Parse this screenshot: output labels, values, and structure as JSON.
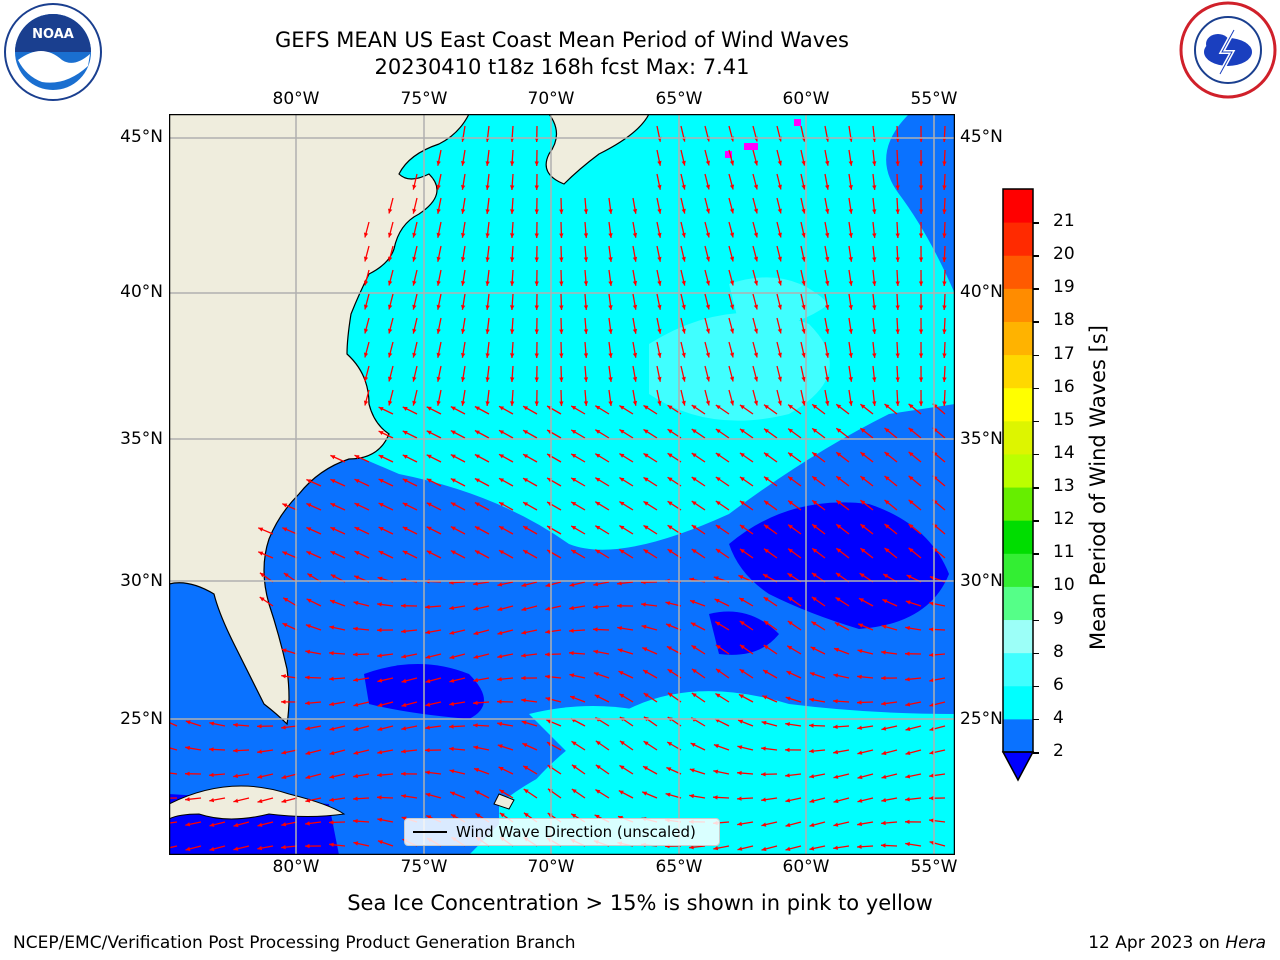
{
  "header": {
    "title_line1": "GEFS MEAN US East Coast Mean Period of Wind Waves",
    "title_line2": "20230410 t18z 168h fcst   Max: 7.41"
  },
  "logos": {
    "noaa": {
      "icon": "noaa-logo",
      "text": "NOAA"
    },
    "nws": {
      "icon": "nws-logo",
      "text": "NATIONAL WEATHER SERVICE"
    }
  },
  "map": {
    "lon_ticks": [
      "80°W",
      "75°W",
      "70°W",
      "65°W",
      "60°W",
      "55°W"
    ],
    "lat_ticks_left": [
      "45°N",
      "40°N",
      "35°N",
      "30°N",
      "25°N"
    ],
    "lat_ticks_right": [
      "45°N",
      "40°N",
      "35°N",
      "30°N",
      "25°N"
    ],
    "extent": {
      "lon": [
        -85,
        -54.2
      ],
      "lat": [
        20.4,
        46
      ]
    },
    "land_color": "#efeddd",
    "grid_color": "#b0b0b0",
    "arrow_color": "#ff0000",
    "legend_label": "Wind Wave Direction (unscaled)"
  },
  "colorbar": {
    "label": "Mean Period of Wind Waves [s]",
    "ticks": [
      "2",
      "4",
      "6",
      "8",
      "9",
      "10",
      "11",
      "12",
      "13",
      "14",
      "15",
      "16",
      "17",
      "18",
      "19",
      "20",
      "21"
    ],
    "colors": [
      "#0a72ff",
      "#00ffff",
      "#40ffff",
      "#9cfff8",
      "#55ff88",
      "#33ee33",
      "#00dd00",
      "#66ee00",
      "#bbff00",
      "#ddf500",
      "#ffff00",
      "#ffd800",
      "#ffb300",
      "#ff8c00",
      "#ff5a00",
      "#ff2a00",
      "#ff0000"
    ],
    "under_color": "#0000ff"
  },
  "notes": {
    "ice": "Sea Ice Concentration > 15% is shown in pink to yellow",
    "footer_left": "NCEP/EMC/Verification Post Processing Product Generation Branch",
    "footer_date": "12 Apr 2023 on",
    "footer_host": "Hera"
  }
}
